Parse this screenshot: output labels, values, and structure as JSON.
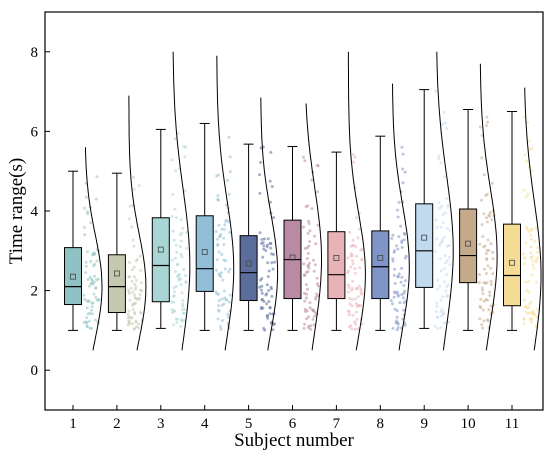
{
  "chart_data": {
    "type": "box",
    "xlabel": "Subject number",
    "ylabel": "Time range(s)",
    "ylim": [
      -1,
      9
    ],
    "yticks": [
      0,
      2,
      4,
      6,
      8
    ],
    "categories": [
      "1",
      "2",
      "3",
      "4",
      "5",
      "6",
      "7",
      "8",
      "9",
      "10",
      "11"
    ],
    "series": [
      {
        "category": "1",
        "color": "#8fc2c2",
        "min": 1.0,
        "q1": 1.65,
        "median": 2.1,
        "q3": 3.08,
        "max": 5.0,
        "mean": 2.35,
        "density_min": 0.5,
        "density_max": 5.6
      },
      {
        "category": "2",
        "color": "#c5c9b0",
        "min": 1.0,
        "q1": 1.45,
        "median": 2.1,
        "q3": 2.9,
        "max": 4.95,
        "mean": 2.43,
        "density_min": 0.5,
        "density_max": 6.9
      },
      {
        "category": "3",
        "color": "#a9d5d4",
        "min": 1.05,
        "q1": 1.72,
        "median": 2.63,
        "q3": 3.83,
        "max": 6.05,
        "mean": 3.03,
        "density_min": 0.5,
        "density_max": 8.0
      },
      {
        "category": "4",
        "color": "#92bfd8",
        "min": 1.0,
        "q1": 1.98,
        "median": 2.55,
        "q3": 3.88,
        "max": 6.2,
        "mean": 2.97,
        "density_min": 0.5,
        "density_max": 7.9
      },
      {
        "category": "5",
        "color": "#5b6e9b",
        "min": 1.0,
        "q1": 1.75,
        "median": 2.45,
        "q3": 3.38,
        "max": 5.68,
        "mean": 2.68,
        "density_min": 0.5,
        "density_max": 6.85
      },
      {
        "category": "6",
        "color": "#b98aa3",
        "min": 1.0,
        "q1": 1.8,
        "median": 2.78,
        "q3": 3.77,
        "max": 5.62,
        "mean": 2.83,
        "density_min": 0.5,
        "density_max": 6.7
      },
      {
        "category": "7",
        "color": "#e8b3b6",
        "min": 1.0,
        "q1": 1.8,
        "median": 2.4,
        "q3": 3.48,
        "max": 5.48,
        "mean": 2.82,
        "density_min": 0.5,
        "density_max": 8.0
      },
      {
        "category": "8",
        "color": "#7f95c7",
        "min": 1.0,
        "q1": 1.8,
        "median": 2.6,
        "q3": 3.5,
        "max": 5.88,
        "mean": 2.82,
        "density_min": 0.5,
        "density_max": 7.2
      },
      {
        "category": "9",
        "color": "#c2daf0",
        "min": 1.05,
        "q1": 2.08,
        "median": 3.0,
        "q3": 4.18,
        "max": 7.05,
        "mean": 3.33,
        "density_min": 0.5,
        "density_max": 8.0
      },
      {
        "category": "10",
        "color": "#c4a98a",
        "min": 1.0,
        "q1": 2.2,
        "median": 2.88,
        "q3": 4.05,
        "max": 6.55,
        "mean": 3.18,
        "density_min": 0.5,
        "density_max": 7.7
      },
      {
        "category": "11",
        "color": "#f5dc95",
        "min": 1.0,
        "q1": 1.62,
        "median": 2.38,
        "q3": 3.67,
        "max": 6.5,
        "mean": 2.7,
        "density_min": 0.5,
        "density_max": 7.1
      }
    ]
  }
}
